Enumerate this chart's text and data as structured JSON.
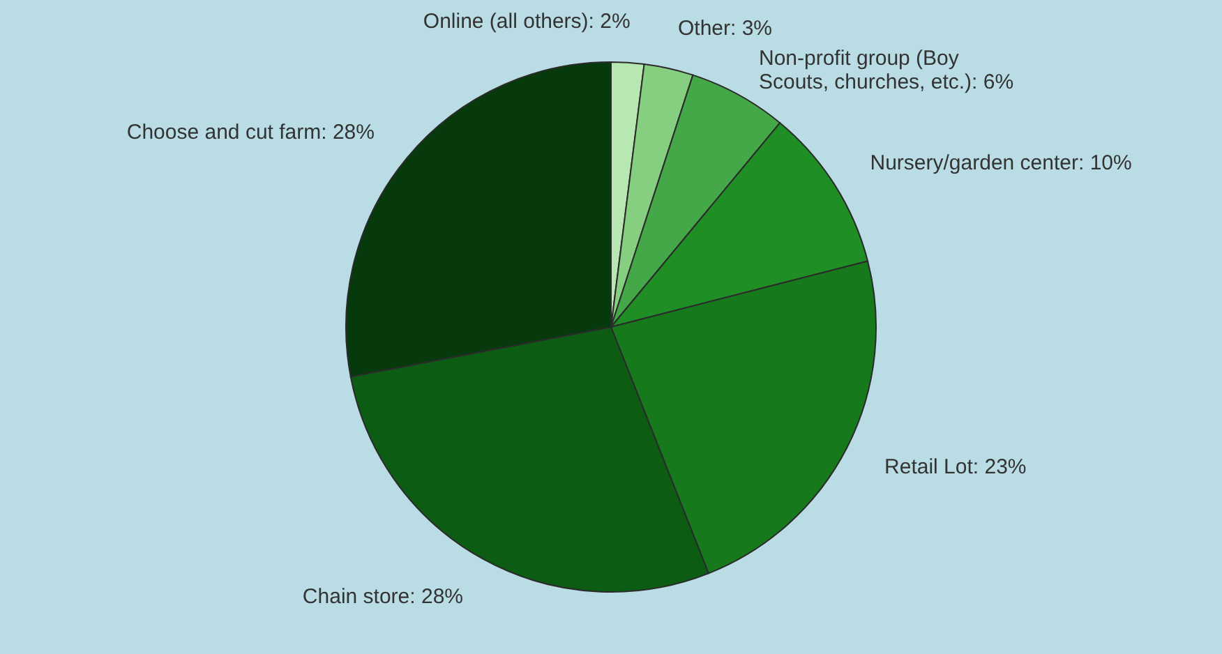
{
  "chart_data": {
    "type": "pie",
    "categories": [
      "Online (all others)",
      "Other",
      "Non-profit group (Boy Scouts, churches, etc.)",
      "Nursery/garden center",
      "Retail Lot",
      "Chain store",
      "Choose and cut farm"
    ],
    "values": [
      2,
      3,
      6,
      10,
      23,
      28,
      28
    ],
    "value_labels": [
      "2%",
      "3%",
      "6%",
      "10%",
      "23%",
      "28%",
      "28%"
    ],
    "colors": [
      "#b8e8b2",
      "#86cf80",
      "#45a848",
      "#1f8e24",
      "#167a1c",
      "#0d5c13",
      "#063a0c"
    ]
  }
}
